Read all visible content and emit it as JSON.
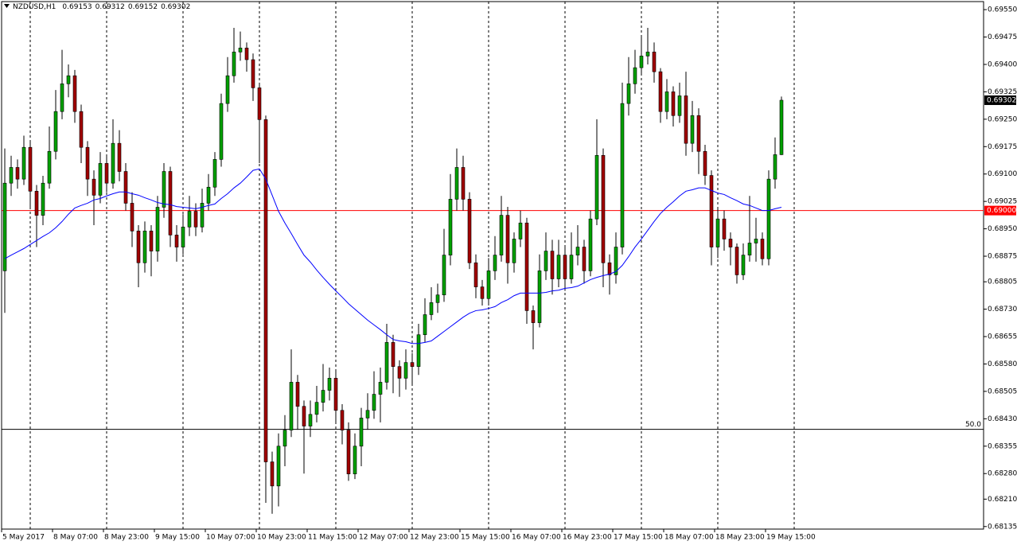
{
  "chart_data": {
    "type": "candlestick",
    "title": "NZDUSD,H1",
    "up_color": "#00a000",
    "down_color": "#a00000",
    "wick_color": "#000000",
    "ylim": [
      0.68128,
      0.69572
    ],
    "yticks": [
      {
        "value": 0.6955,
        "label": "0.69550"
      },
      0.69475,
      {
        "value": 0.694,
        "label": "0.69400"
      },
      0.69325,
      {
        "value": 0.6925,
        "label": "0.69250"
      },
      0.69175,
      {
        "value": 0.691,
        "label": "0.69100"
      },
      0.69025,
      {
        "value": 0.6895,
        "label": "0.68950"
      },
      0.68875,
      0.68805,
      {
        "value": 0.6873,
        "label": "0.68730"
      },
      0.68655,
      {
        "value": 0.6858,
        "label": "0.68580"
      },
      0.68505,
      {
        "value": 0.6843,
        "label": "0.68430"
      },
      0.68355,
      {
        "value": 0.6828,
        "label": "0.68280"
      },
      {
        "value": 0.6821,
        "label": "0.68210"
      },
      0.68135
    ],
    "x_labels": [
      "5 May 2017",
      "8 May 07:00",
      "8 May 23:00",
      "9 May 15:00",
      "10 May 07:00",
      "10 May 23:00",
      "11 May 15:00",
      "12 May 07:00",
      "12 May 23:00",
      "15 May 15:00",
      "16 May 07:00",
      "16 May 23:00",
      "17 May 15:00",
      "18 May 07:00",
      "18 May 23:00",
      "19 May 15:00"
    ],
    "hline": {
      "value": 0.69,
      "label": "0.69000",
      "color": "#ff0000"
    },
    "level": {
      "value": 0.68401,
      "label": "50.0",
      "color": "#000000"
    },
    "ma": {
      "color": "#0000ff",
      "values": [
        0.68868,
        0.68878,
        0.68887,
        0.68896,
        0.68907,
        0.68918,
        0.68929,
        0.68939,
        0.68953,
        0.6897,
        0.6899,
        0.69007,
        0.69014,
        0.6902,
        0.69029,
        0.69033,
        0.6904,
        0.69046,
        0.69051,
        0.69051,
        0.69046,
        0.69042,
        0.69035,
        0.69029,
        0.69022,
        0.69018,
        0.69016,
        0.69011,
        0.69009,
        0.69007,
        0.69005,
        0.69009,
        0.69014,
        0.69018,
        0.69033,
        0.69046,
        0.69062,
        0.69075,
        0.69092,
        0.6911,
        0.69114,
        0.69086,
        0.69042,
        0.68998,
        0.68966,
        0.68937,
        0.68907,
        0.68878,
        0.68859,
        0.68837,
        0.68817,
        0.68798,
        0.6878,
        0.68763,
        0.68745,
        0.6873,
        0.68715,
        0.687,
        0.68687,
        0.68674,
        0.6866,
        0.68647,
        0.68643,
        0.68641,
        0.68636,
        0.68636,
        0.68639,
        0.68643,
        0.68656,
        0.68669,
        0.68682,
        0.68695,
        0.68708,
        0.68719,
        0.68726,
        0.68728,
        0.68732,
        0.68737,
        0.68748,
        0.68756,
        0.68767,
        0.68774,
        0.68774,
        0.68774,
        0.68774,
        0.68776,
        0.6878,
        0.68782,
        0.68787,
        0.68789,
        0.68793,
        0.68802,
        0.68811,
        0.68817,
        0.68822,
        0.68826,
        0.68833,
        0.6885,
        0.68874,
        0.689,
        0.68922,
        0.68946,
        0.6897,
        0.68992,
        0.69009,
        0.69024,
        0.6904,
        0.69053,
        0.69057,
        0.69062,
        0.69062,
        0.69055,
        0.69048,
        0.69044,
        0.69035,
        0.69027,
        0.69018,
        0.69014,
        0.69007,
        0.69,
        0.69,
        0.69005,
        0.69009
      ]
    },
    "candles": [
      [
        0.68835,
        0.6917,
        0.6872,
        0.69075
      ],
      [
        0.69075,
        0.6915,
        0.6904,
        0.69118
      ],
      [
        0.69118,
        0.6914,
        0.6906,
        0.69086
      ],
      [
        0.69086,
        0.69205,
        0.6907,
        0.69173
      ],
      [
        0.69173,
        0.6919,
        0.6901,
        0.69053
      ],
      [
        0.69053,
        0.6907,
        0.689,
        0.68987
      ],
      [
        0.68987,
        0.69095,
        0.6896,
        0.69075
      ],
      [
        0.69075,
        0.6923,
        0.6906,
        0.69162
      ],
      [
        0.69162,
        0.6933,
        0.6914,
        0.69271
      ],
      [
        0.69271,
        0.6944,
        0.6925,
        0.69347
      ],
      [
        0.69347,
        0.694,
        0.6931,
        0.69369
      ],
      [
        0.69369,
        0.69385,
        0.6924,
        0.69271
      ],
      [
        0.69271,
        0.6929,
        0.6913,
        0.69173
      ],
      [
        0.69173,
        0.6919,
        0.6904,
        0.69086
      ],
      [
        0.69086,
        0.6911,
        0.6896,
        0.69042
      ],
      [
        0.69042,
        0.6916,
        0.6902,
        0.69129
      ],
      [
        0.69129,
        0.6915,
        0.6905,
        0.69075
      ],
      [
        0.69075,
        0.6925,
        0.6906,
        0.69184
      ],
      [
        0.69184,
        0.6922,
        0.6908,
        0.69107
      ],
      [
        0.69107,
        0.6913,
        0.69,
        0.6902
      ],
      [
        0.6902,
        0.6905,
        0.689,
        0.68944
      ],
      [
        0.68944,
        0.6896,
        0.6879,
        0.68857
      ],
      [
        0.68857,
        0.6897,
        0.6883,
        0.68944
      ],
      [
        0.68944,
        0.6896,
        0.6882,
        0.68889
      ],
      [
        0.68889,
        0.6904,
        0.6886,
        0.69009
      ],
      [
        0.69009,
        0.6913,
        0.6898,
        0.69107
      ],
      [
        0.69107,
        0.6912,
        0.689,
        0.68933
      ],
      [
        0.68933,
        0.6896,
        0.6886,
        0.689
      ],
      [
        0.689,
        0.6899,
        0.6888,
        0.68955
      ],
      [
        0.68955,
        0.6904,
        0.6893,
        0.68998
      ],
      [
        0.68998,
        0.6902,
        0.6893,
        0.68955
      ],
      [
        0.68955,
        0.6906,
        0.6894,
        0.6902
      ],
      [
        0.6902,
        0.691,
        0.69,
        0.69064
      ],
      [
        0.69064,
        0.6916,
        0.6904,
        0.6914
      ],
      [
        0.6914,
        0.6932,
        0.6912,
        0.69293
      ],
      [
        0.69293,
        0.6942,
        0.6927,
        0.69369
      ],
      [
        0.69369,
        0.695,
        0.6935,
        0.69434
      ],
      [
        0.69434,
        0.6949,
        0.6941,
        0.69445
      ],
      [
        0.69445,
        0.6946,
        0.6938,
        0.69413
      ],
      [
        0.69413,
        0.6943,
        0.693,
        0.69336
      ],
      [
        0.69336,
        0.6935,
        0.6913,
        0.69249
      ],
      [
        0.69249,
        0.6926,
        0.682,
        0.68312
      ],
      [
        0.68312,
        0.6834,
        0.6817,
        0.68246
      ],
      [
        0.68246,
        0.6839,
        0.6819,
        0.68355
      ],
      [
        0.68355,
        0.6844,
        0.683,
        0.68399
      ],
      [
        0.68399,
        0.6862,
        0.6838,
        0.6853
      ],
      [
        0.6853,
        0.6855,
        0.684,
        0.68464
      ],
      [
        0.68464,
        0.6848,
        0.6828,
        0.6841
      ],
      [
        0.6841,
        0.6848,
        0.6838,
        0.68442
      ],
      [
        0.68442,
        0.6852,
        0.6842,
        0.68475
      ],
      [
        0.68475,
        0.6858,
        0.6845,
        0.68508
      ],
      [
        0.68508,
        0.6857,
        0.6848,
        0.68541
      ],
      [
        0.68541,
        0.6856,
        0.6842,
        0.68453
      ],
      [
        0.68453,
        0.6847,
        0.6836,
        0.68399
      ],
      [
        0.68399,
        0.6842,
        0.6826,
        0.68279
      ],
      [
        0.68279,
        0.6839,
        0.68265,
        0.68355
      ],
      [
        0.68355,
        0.6846,
        0.683,
        0.68432
      ],
      [
        0.68432,
        0.685,
        0.684,
        0.68453
      ],
      [
        0.68453,
        0.6856,
        0.6843,
        0.68497
      ],
      [
        0.68497,
        0.6857,
        0.6842,
        0.6853
      ],
      [
        0.6853,
        0.6869,
        0.6851,
        0.68639
      ],
      [
        0.68639,
        0.6866,
        0.685,
        0.68573
      ],
      [
        0.68573,
        0.6859,
        0.6849,
        0.68541
      ],
      [
        0.68541,
        0.6862,
        0.6851,
        0.68584
      ],
      [
        0.68584,
        0.6861,
        0.6852,
        0.68573
      ],
      [
        0.68573,
        0.6869,
        0.6855,
        0.6866
      ],
      [
        0.6866,
        0.6876,
        0.6864,
        0.68715
      ],
      [
        0.68715,
        0.6879,
        0.687,
        0.68748
      ],
      [
        0.68748,
        0.688,
        0.6872,
        0.68769
      ],
      [
        0.68769,
        0.6895,
        0.6875,
        0.68878
      ],
      [
        0.68878,
        0.691,
        0.6885,
        0.69031
      ],
      [
        0.69031,
        0.6917,
        0.69,
        0.69118
      ],
      [
        0.69118,
        0.6915,
        0.69,
        0.69031
      ],
      [
        0.69031,
        0.6905,
        0.6884,
        0.68857
      ],
      [
        0.68857,
        0.6888,
        0.6876,
        0.68791
      ],
      [
        0.68791,
        0.6881,
        0.6874,
        0.68759
      ],
      [
        0.68759,
        0.6887,
        0.6874,
        0.68835
      ],
      [
        0.68835,
        0.6893,
        0.6881,
        0.68878
      ],
      [
        0.68878,
        0.6904,
        0.6886,
        0.68987
      ],
      [
        0.68987,
        0.6901,
        0.688,
        0.68857
      ],
      [
        0.68857,
        0.6894,
        0.6883,
        0.68922
      ],
      [
        0.68922,
        0.69,
        0.689,
        0.68966
      ],
      [
        0.68966,
        0.6898,
        0.6869,
        0.68726
      ],
      [
        0.68726,
        0.6874,
        0.6862,
        0.68693
      ],
      [
        0.68693,
        0.6888,
        0.6868,
        0.68835
      ],
      [
        0.68835,
        0.6894,
        0.6881,
        0.68889
      ],
      [
        0.68889,
        0.6892,
        0.6877,
        0.68813
      ],
      [
        0.68813,
        0.6892,
        0.6879,
        0.68878
      ],
      [
        0.68878,
        0.689,
        0.6878,
        0.68813
      ],
      [
        0.68813,
        0.6894,
        0.688,
        0.68878
      ],
      [
        0.68878,
        0.6896,
        0.6885,
        0.689
      ],
      [
        0.689,
        0.6892,
        0.688,
        0.68835
      ],
      [
        0.68835,
        0.69,
        0.6882,
        0.68977
      ],
      [
        0.68977,
        0.6925,
        0.6896,
        0.69151
      ],
      [
        0.69151,
        0.6917,
        0.6879,
        0.68857
      ],
      [
        0.68857,
        0.6888,
        0.6877,
        0.68824
      ],
      [
        0.68824,
        0.6894,
        0.688,
        0.689
      ],
      [
        0.689,
        0.6935,
        0.6888,
        0.69293
      ],
      [
        0.69293,
        0.6942,
        0.6926,
        0.69347
      ],
      [
        0.69347,
        0.6944,
        0.6932,
        0.69391
      ],
      [
        0.69391,
        0.6948,
        0.6937,
        0.69423
      ],
      [
        0.69423,
        0.695,
        0.694,
        0.69434
      ],
      [
        0.69434,
        0.6946,
        0.6935,
        0.6938
      ],
      [
        0.6938,
        0.6939,
        0.6924,
        0.69271
      ],
      [
        0.69271,
        0.6936,
        0.6925,
        0.69325
      ],
      [
        0.69325,
        0.6934,
        0.6923,
        0.6926
      ],
      [
        0.6926,
        0.6935,
        0.6924,
        0.69314
      ],
      [
        0.69314,
        0.6938,
        0.6915,
        0.69184
      ],
      [
        0.69184,
        0.693,
        0.6916,
        0.6926
      ],
      [
        0.6926,
        0.6928,
        0.691,
        0.69162
      ],
      [
        0.69162,
        0.6918,
        0.6907,
        0.69096
      ],
      [
        0.69096,
        0.6911,
        0.6885,
        0.689
      ],
      [
        0.689,
        0.6901,
        0.6887,
        0.68977
      ],
      [
        0.68977,
        0.69,
        0.6889,
        0.68922
      ],
      [
        0.68922,
        0.6894,
        0.6885,
        0.689
      ],
      [
        0.689,
        0.6891,
        0.688,
        0.68824
      ],
      [
        0.68824,
        0.6891,
        0.6881,
        0.68878
      ],
      [
        0.68878,
        0.6904,
        0.6886,
        0.68911
      ],
      [
        0.68911,
        0.6898,
        0.6886,
        0.68922
      ],
      [
        0.68922,
        0.6894,
        0.6885,
        0.68868
      ],
      [
        0.68868,
        0.6911,
        0.6885,
        0.69086
      ],
      [
        0.69086,
        0.692,
        0.6906,
        0.69153
      ],
      [
        0.69153,
        0.69312,
        0.69152,
        0.69302
      ]
    ]
  }
}
